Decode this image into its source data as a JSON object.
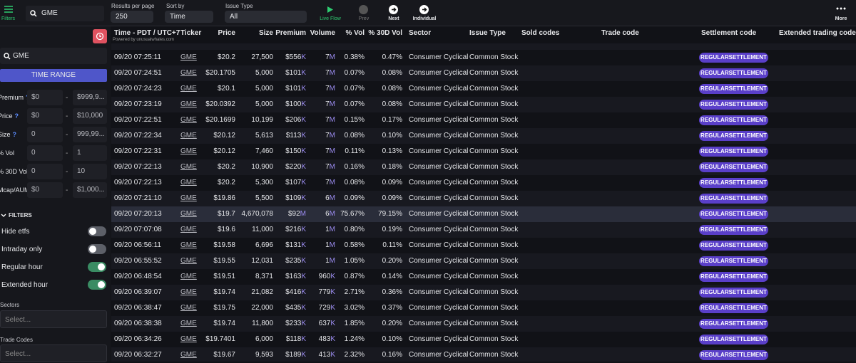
{
  "toolbar": {
    "filters": "Filters",
    "search": "GME",
    "results_label": "Results per page",
    "results_value": "250",
    "sort_label": "Sort by",
    "sort_value": "Time",
    "issue_label": "Issue Type",
    "issue_value": "All",
    "live": "Live Flow",
    "prev": "Prev",
    "next": "Next",
    "individual": "Individual",
    "more": "More"
  },
  "sidebar": {
    "search": "GME",
    "time_range": "TIME RANGE",
    "ranges": [
      {
        "label": "Premium",
        "q": "?",
        "min": "$0",
        "max": "$999,9..."
      },
      {
        "label": "Price",
        "q": "?",
        "min": "$0",
        "max": "$10,000"
      },
      {
        "label": "Size",
        "q": "?",
        "min": "0",
        "max": "999,99..."
      },
      {
        "label": "% Vol",
        "min": "0",
        "max": "1"
      },
      {
        "label": "% 30D Vol",
        "min": "0",
        "max": "10"
      },
      {
        "label": "Mcap/AUM",
        "min": "$0",
        "max": "$1,000..."
      }
    ],
    "dash": "-",
    "filters_title": "FILTERS",
    "toggles": [
      {
        "label": "Hide etfs",
        "on": false
      },
      {
        "label": "Intraday only",
        "on": false
      },
      {
        "label": "Regular hour",
        "on": true
      },
      {
        "label": "Extended hour",
        "on": true
      }
    ],
    "sectors_label": "Sectors",
    "sectors_value": "Select...",
    "codes_label": "Trade Codes",
    "codes_value": "Select..."
  },
  "table": {
    "powered": "Powered by unusualwhales.com",
    "headers": [
      "Time - PDT / UTC+7",
      "Ticker",
      "Price",
      "Size",
      "Premium",
      "Volume",
      "% Vol",
      "% 30D Vol",
      "Sector",
      "Issue Type",
      "Sold codes",
      "Trade code",
      "Settlement code",
      "Extended trading code"
    ],
    "highlight_row": 10,
    "rows": [
      [
        "09/20 07:25:11",
        "GME",
        "$20.2",
        "27,500",
        "$556K",
        "7M",
        "0.38%",
        "0.47%",
        "Consumer Cyclical",
        "Common Stock",
        "REGULARSETTLEMENT"
      ],
      [
        "09/20 07:24:51",
        "GME",
        "$20.1705",
        "5,000",
        "$101K",
        "7M",
        "0.07%",
        "0.08%",
        "Consumer Cyclical",
        "Common Stock",
        "REGULARSETTLEMENT"
      ],
      [
        "09/20 07:24:23",
        "GME",
        "$20.1",
        "5,000",
        "$101K",
        "7M",
        "0.07%",
        "0.08%",
        "Consumer Cyclical",
        "Common Stock",
        "REGULARSETTLEMENT"
      ],
      [
        "09/20 07:23:19",
        "GME",
        "$20.0392",
        "5,000",
        "$100K",
        "7M",
        "0.07%",
        "0.08%",
        "Consumer Cyclical",
        "Common Stock",
        "REGULARSETTLEMENT"
      ],
      [
        "09/20 07:22:51",
        "GME",
        "$20.1699",
        "10,199",
        "$206K",
        "7M",
        "0.15%",
        "0.17%",
        "Consumer Cyclical",
        "Common Stock",
        "REGULARSETTLEMENT"
      ],
      [
        "09/20 07:22:34",
        "GME",
        "$20.12",
        "5,613",
        "$113K",
        "7M",
        "0.08%",
        "0.10%",
        "Consumer Cyclical",
        "Common Stock",
        "REGULARSETTLEMENT"
      ],
      [
        "09/20 07:22:31",
        "GME",
        "$20.12",
        "7,460",
        "$150K",
        "7M",
        "0.11%",
        "0.13%",
        "Consumer Cyclical",
        "Common Stock",
        "REGULARSETTLEMENT"
      ],
      [
        "09/20 07:22:13",
        "GME",
        "$20.2",
        "10,900",
        "$220K",
        "7M",
        "0.16%",
        "0.18%",
        "Consumer Cyclical",
        "Common Stock",
        "REGULARSETTLEMENT"
      ],
      [
        "09/20 07:22:13",
        "GME",
        "$20.2",
        "5,300",
        "$107K",
        "7M",
        "0.08%",
        "0.09%",
        "Consumer Cyclical",
        "Common Stock",
        "REGULARSETTLEMENT"
      ],
      [
        "09/20 07:21:10",
        "GME",
        "$19.86",
        "5,500",
        "$109K",
        "6M",
        "0.09%",
        "0.09%",
        "Consumer Cyclical",
        "Common Stock",
        "REGULARSETTLEMENT"
      ],
      [
        "09/20 07:20:13",
        "GME",
        "$19.7",
        "4,670,078",
        "$92M",
        "6M",
        "75.67%",
        "79.15%",
        "Consumer Cyclical",
        "Common Stock",
        "REGULARSETTLEMENT"
      ],
      [
        "09/20 07:07:08",
        "GME",
        "$19.6",
        "11,000",
        "$216K",
        "1M",
        "0.80%",
        "0.19%",
        "Consumer Cyclical",
        "Common Stock",
        "REGULARSETTLEMENT"
      ],
      [
        "09/20 06:56:11",
        "GME",
        "$19.58",
        "6,696",
        "$131K",
        "1M",
        "0.58%",
        "0.11%",
        "Consumer Cyclical",
        "Common Stock",
        "REGULARSETTLEMENT"
      ],
      [
        "09/20 06:55:52",
        "GME",
        "$19.55",
        "12,031",
        "$235K",
        "1M",
        "1.05%",
        "0.20%",
        "Consumer Cyclical",
        "Common Stock",
        "REGULARSETTLEMENT"
      ],
      [
        "09/20 06:48:54",
        "GME",
        "$19.51",
        "8,371",
        "$163K",
        "960K",
        "0.87%",
        "0.14%",
        "Consumer Cyclical",
        "Common Stock",
        "REGULARSETTLEMENT"
      ],
      [
        "09/20 06:39:07",
        "GME",
        "$19.74",
        "21,082",
        "$416K",
        "779K",
        "2.71%",
        "0.36%",
        "Consumer Cyclical",
        "Common Stock",
        "REGULARSETTLEMENT"
      ],
      [
        "09/20 06:38:47",
        "GME",
        "$19.75",
        "22,000",
        "$435K",
        "729K",
        "3.02%",
        "0.37%",
        "Consumer Cyclical",
        "Common Stock",
        "REGULARSETTLEMENT"
      ],
      [
        "09/20 06:38:38",
        "GME",
        "$19.74",
        "11,800",
        "$233K",
        "637K",
        "1.85%",
        "0.20%",
        "Consumer Cyclical",
        "Common Stock",
        "REGULARSETTLEMENT"
      ],
      [
        "09/20 06:34:26",
        "GME",
        "$19.7401",
        "6,000",
        "$118K",
        "483K",
        "1.24%",
        "0.10%",
        "Consumer Cyclical",
        "Common Stock",
        "REGULARSETTLEMENT"
      ],
      [
        "09/20 06:32:27",
        "GME",
        "$19.67",
        "9,593",
        "$189K",
        "413K",
        "2.32%",
        "0.16%",
        "Consumer Cyclical",
        "Common Stock",
        "REGULARSETTLEMENT"
      ]
    ]
  }
}
